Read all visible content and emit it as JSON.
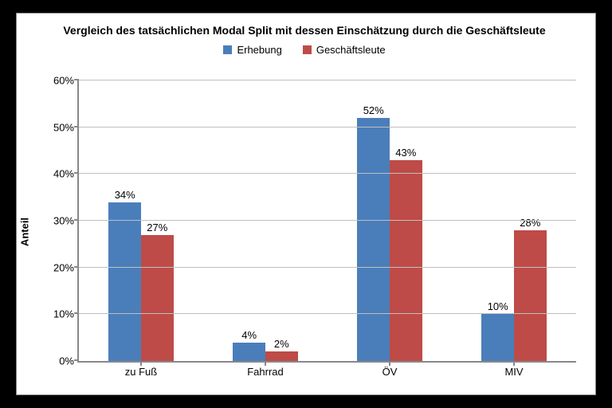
{
  "chart": {
    "type": "bar",
    "title": "Vergleich des tatsächlichen Modal Split mit dessen Einschätzung durch die Geschäftsleute",
    "ylabel": "Anteil",
    "categories": [
      "zu Fuß",
      "Fahrrad",
      "ÖV",
      "MIV"
    ],
    "series": [
      {
        "name": "Erhebung",
        "color": "#4a7ebb",
        "values": [
          34,
          4,
          52,
          10
        ]
      },
      {
        "name": "Geschäftsleute",
        "color": "#be4b48",
        "values": [
          27,
          2,
          43,
          28
        ]
      }
    ],
    "ylim": [
      0,
      60
    ],
    "ytick_step": 10,
    "ytick_suffix": "%",
    "value_label_suffix": "%",
    "bar_width_pct": 26,
    "bar_gap_pct": 0,
    "grid_color": "#bfbfbf",
    "axis_color": "#888888",
    "background_color": "#ffffff",
    "title_fontsize": 14,
    "label_fontsize": 13
  }
}
